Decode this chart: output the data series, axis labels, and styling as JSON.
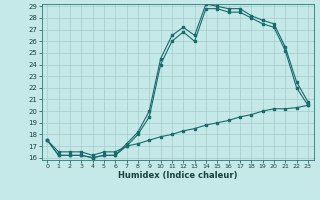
{
  "bg_color": "#c5e8e8",
  "line_color": "#1a6b6b",
  "xlabel": "Humidex (Indice chaleur)",
  "xlim_min": 0,
  "xlim_max": 23,
  "ylim_min": 16,
  "ylim_max": 29,
  "xticks": [
    0,
    1,
    2,
    3,
    4,
    5,
    6,
    7,
    8,
    9,
    10,
    11,
    12,
    13,
    14,
    15,
    16,
    17,
    18,
    19,
    20,
    21,
    22,
    23
  ],
  "yticks": [
    16,
    17,
    18,
    19,
    20,
    21,
    22,
    23,
    24,
    25,
    26,
    27,
    28,
    29
  ],
  "curve1_x": [
    0,
    1,
    2,
    3,
    4,
    5,
    6,
    7,
    8,
    9,
    10,
    11,
    12,
    13,
    14,
    15,
    16,
    17,
    18,
    19,
    20,
    21,
    22,
    23
  ],
  "curve1_y": [
    17.5,
    16.2,
    16.2,
    16.2,
    16.0,
    16.2,
    16.2,
    17.2,
    18.2,
    20.0,
    24.5,
    26.5,
    27.2,
    26.5,
    29.2,
    29.0,
    28.8,
    28.8,
    28.2,
    27.8,
    27.5,
    25.5,
    22.5,
    20.8
  ],
  "curve2_x": [
    0,
    1,
    2,
    3,
    4,
    5,
    6,
    7,
    8,
    9,
    10,
    11,
    12,
    13,
    14,
    15,
    16,
    17,
    18,
    19,
    20,
    21,
    22,
    23
  ],
  "curve2_y": [
    17.5,
    16.2,
    16.2,
    16.2,
    16.0,
    16.2,
    16.2,
    17.0,
    18.0,
    19.5,
    24.0,
    26.0,
    26.8,
    26.0,
    28.8,
    28.8,
    28.5,
    28.5,
    28.0,
    27.5,
    27.2,
    25.2,
    22.0,
    20.5
  ],
  "diag_x": [
    0,
    1,
    2,
    3,
    4,
    5,
    6,
    7,
    8,
    9,
    10,
    11,
    12,
    13,
    14,
    15,
    16,
    17,
    18,
    19,
    20,
    21,
    22,
    23
  ],
  "diag_y": [
    17.5,
    16.5,
    16.5,
    16.5,
    16.2,
    16.5,
    16.5,
    17.0,
    17.2,
    17.5,
    17.8,
    18.0,
    18.3,
    18.5,
    18.8,
    19.0,
    19.2,
    19.5,
    19.7,
    20.0,
    20.2,
    20.2,
    20.3,
    20.5
  ]
}
